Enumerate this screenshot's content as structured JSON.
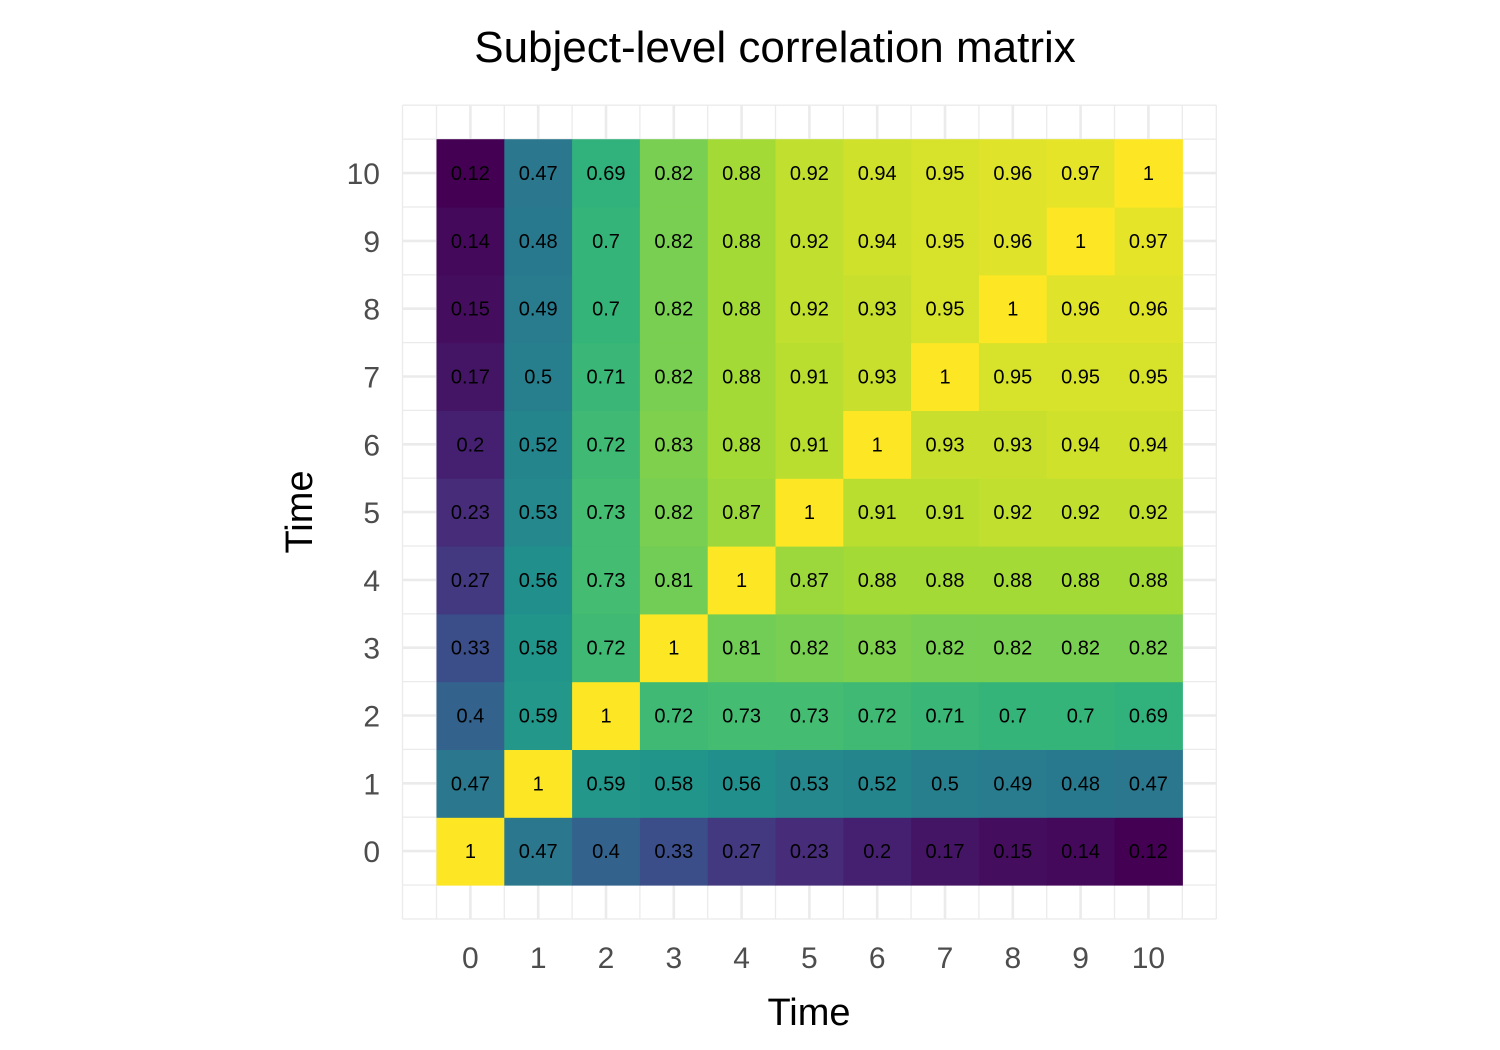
{
  "chart_data": {
    "type": "heatmap",
    "title": "Subject-level correlation matrix",
    "xlabel": "Time",
    "ylabel": "Time",
    "x": [
      0,
      1,
      2,
      3,
      4,
      5,
      6,
      7,
      8,
      9,
      10
    ],
    "y": [
      0,
      1,
      2,
      3,
      4,
      5,
      6,
      7,
      8,
      9,
      10
    ],
    "x_tick_labels": [
      "0",
      "1",
      "2",
      "3",
      "4",
      "5",
      "6",
      "7",
      "8",
      "9",
      "10"
    ],
    "y_tick_labels": [
      "0",
      "1",
      "2",
      "3",
      "4",
      "5",
      "6",
      "7",
      "8",
      "9",
      "10"
    ],
    "colormap": "viridis",
    "value_range": [
      0.12,
      1
    ],
    "grid": true,
    "legend": "none",
    "values": [
      [
        1,
        0.47,
        0.4,
        0.33,
        0.27,
        0.23,
        0.2,
        0.17,
        0.15,
        0.14,
        0.12
      ],
      [
        0.47,
        1,
        0.59,
        0.58,
        0.56,
        0.53,
        0.52,
        0.5,
        0.49,
        0.48,
        0.47
      ],
      [
        0.4,
        0.59,
        1,
        0.72,
        0.73,
        0.73,
        0.72,
        0.71,
        0.7,
        0.7,
        0.69
      ],
      [
        0.33,
        0.58,
        0.72,
        1,
        0.81,
        0.82,
        0.83,
        0.82,
        0.82,
        0.82,
        0.82
      ],
      [
        0.27,
        0.56,
        0.73,
        0.81,
        1,
        0.87,
        0.88,
        0.88,
        0.88,
        0.88,
        0.88
      ],
      [
        0.23,
        0.53,
        0.73,
        0.82,
        0.87,
        1,
        0.91,
        0.91,
        0.92,
        0.92,
        0.92
      ],
      [
        0.2,
        0.52,
        0.72,
        0.83,
        0.88,
        0.91,
        1,
        0.93,
        0.93,
        0.94,
        0.94
      ],
      [
        0.17,
        0.5,
        0.71,
        0.82,
        0.88,
        0.91,
        0.93,
        1,
        0.95,
        0.95,
        0.95
      ],
      [
        0.15,
        0.49,
        0.7,
        0.82,
        0.88,
        0.92,
        0.93,
        0.95,
        1,
        0.96,
        0.96
      ],
      [
        0.14,
        0.48,
        0.7,
        0.82,
        0.88,
        0.92,
        0.94,
        0.95,
        0.96,
        1,
        0.97
      ],
      [
        0.12,
        0.47,
        0.69,
        0.82,
        0.88,
        0.92,
        0.94,
        0.95,
        0.96,
        0.97,
        1
      ]
    ]
  }
}
